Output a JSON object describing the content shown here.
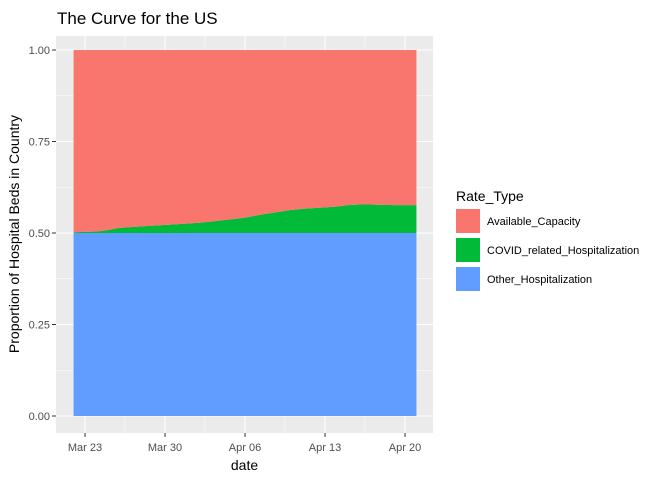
{
  "chart_data": {
    "type": "area",
    "stacked": true,
    "title": "The Curve for the US",
    "xlabel": "date",
    "ylabel": "Proportion of Hospital Beds in Country",
    "x_ticks": [
      "Mar 23",
      "Mar 30",
      "Apr 06",
      "Apr 13",
      "Apr 20"
    ],
    "y_ticks": [
      "0.00",
      "0.25",
      "0.50",
      "0.75",
      "1.00"
    ],
    "ylim": [
      0,
      1
    ],
    "grid": true,
    "legend_title": "Rate_Type",
    "legend_position": "right",
    "x": [
      "2020-03-22",
      "2020-03-23",
      "2020-03-24",
      "2020-03-25",
      "2020-03-26",
      "2020-03-27",
      "2020-03-28",
      "2020-03-29",
      "2020-03-30",
      "2020-03-31",
      "2020-04-01",
      "2020-04-02",
      "2020-04-03",
      "2020-04-04",
      "2020-04-05",
      "2020-04-06",
      "2020-04-07",
      "2020-04-08",
      "2020-04-09",
      "2020-04-10",
      "2020-04-11",
      "2020-04-12",
      "2020-04-13",
      "2020-04-14",
      "2020-04-15",
      "2020-04-16",
      "2020-04-17",
      "2020-04-18",
      "2020-04-19",
      "2020-04-20",
      "2020-04-21"
    ],
    "series": [
      {
        "name": "Other_Hospitalization",
        "color": "#619CFF",
        "values": [
          0.5,
          0.5,
          0.5,
          0.5,
          0.5,
          0.5,
          0.5,
          0.5,
          0.5,
          0.5,
          0.5,
          0.5,
          0.5,
          0.5,
          0.5,
          0.5,
          0.5,
          0.5,
          0.5,
          0.5,
          0.5,
          0.5,
          0.5,
          0.5,
          0.5,
          0.5,
          0.5,
          0.5,
          0.5,
          0.5,
          0.5
        ]
      },
      {
        "name": "COVID_related_Hospitalization",
        "color": "#00BA38",
        "values": [
          0.002,
          0.003,
          0.004,
          0.008,
          0.014,
          0.016,
          0.018,
          0.02,
          0.022,
          0.024,
          0.026,
          0.028,
          0.031,
          0.035,
          0.038,
          0.042,
          0.048,
          0.053,
          0.058,
          0.063,
          0.066,
          0.068,
          0.07,
          0.072,
          0.076,
          0.078,
          0.078,
          0.077,
          0.076,
          0.076,
          0.076
        ]
      },
      {
        "name": "Available_Capacity",
        "color": "#F8766D",
        "values": [
          0.498,
          0.497,
          0.496,
          0.492,
          0.486,
          0.484,
          0.482,
          0.48,
          0.478,
          0.476,
          0.474,
          0.472,
          0.469,
          0.465,
          0.462,
          0.458,
          0.452,
          0.447,
          0.442,
          0.437,
          0.434,
          0.432,
          0.43,
          0.428,
          0.424,
          0.422,
          0.422,
          0.423,
          0.424,
          0.424,
          0.424
        ]
      }
    ]
  }
}
